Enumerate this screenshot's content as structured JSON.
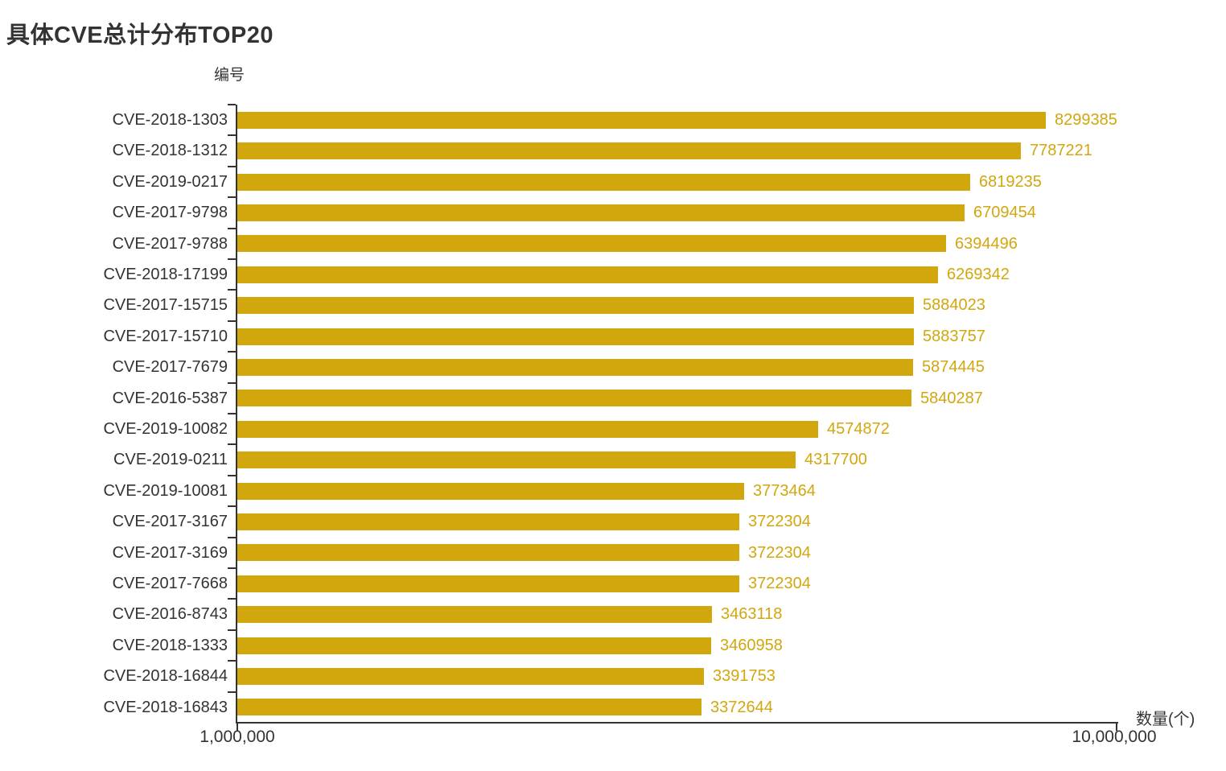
{
  "title": "具体CVE总计分布TOP20",
  "y_axis": {
    "title": "编号"
  },
  "x_axis": {
    "title": "数量(个)",
    "tick_labels": [
      "1,000,000",
      "10,000,000"
    ]
  },
  "colors": {
    "bar": "#D2A70E",
    "value_label": "#D2A70E",
    "text": "#333333",
    "axis": "#333333"
  },
  "chart_data": {
    "type": "bar",
    "orientation": "horizontal",
    "x_scale": "log",
    "x_range": [
      1000000,
      10000000
    ],
    "title": "具体CVE总计分布TOP20",
    "xlabel": "数量(个)",
    "ylabel": "编号",
    "grid": false,
    "legend": false,
    "categories": [
      "CVE-2018-1303",
      "CVE-2018-1312",
      "CVE-2019-0217",
      "CVE-2017-9798",
      "CVE-2017-9788",
      "CVE-2018-17199",
      "CVE-2017-15715",
      "CVE-2017-15710",
      "CVE-2017-7679",
      "CVE-2016-5387",
      "CVE-2019-10082",
      "CVE-2019-0211",
      "CVE-2019-10081",
      "CVE-2017-3167",
      "CVE-2017-3169",
      "CVE-2017-7668",
      "CVE-2016-8743",
      "CVE-2018-1333",
      "CVE-2018-16844",
      "CVE-2018-16843"
    ],
    "values": [
      8299385,
      7787221,
      6819235,
      6709454,
      6394496,
      6269342,
      5884023,
      5883757,
      5874445,
      5840287,
      4574872,
      4317700,
      3773464,
      3722304,
      3722304,
      3722304,
      3463118,
      3460958,
      3391753,
      3372644
    ]
  }
}
